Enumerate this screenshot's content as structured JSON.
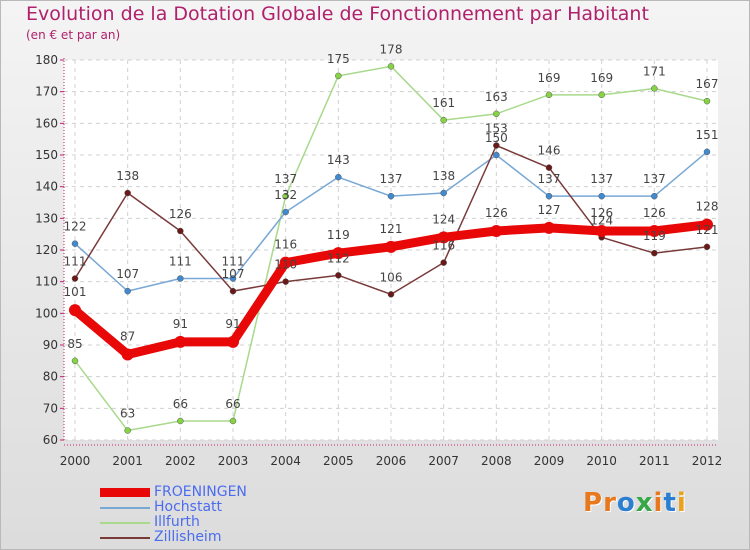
{
  "header": {
    "title": "Evolution de la Dotation Globale de Fonctionnement par Habitant",
    "subtitle": "(en € et par an)"
  },
  "logo": {
    "text": "Proxiti",
    "colors": [
      "#e8781e",
      "#e8781e",
      "#2c7fd0",
      "#35a847",
      "#e8781e",
      "#2c7fd0",
      "#e8a21e"
    ]
  },
  "chart_data": {
    "type": "line",
    "title": "Evolution de la Dotation Globale de Fonctionnement par Habitant",
    "subtitle": "(en € et par an)",
    "xlabel": "",
    "ylabel": "",
    "x": [
      "2000",
      "2001",
      "2002",
      "2003",
      "2004",
      "2005",
      "2006",
      "2007",
      "2008",
      "2009",
      "2010",
      "2011",
      "2012"
    ],
    "ylim": [
      60,
      180
    ],
    "yticks": [
      60,
      70,
      80,
      90,
      100,
      110,
      120,
      130,
      140,
      150,
      160,
      170,
      180
    ],
    "grid": true,
    "legend_position": "bottom-left",
    "series": [
      {
        "name": "Illfurth",
        "color": "#86d444",
        "stroke": "#a8d98c",
        "role": "thin",
        "values": [
          85,
          63,
          66,
          66,
          137,
          175,
          178,
          161,
          163,
          169,
          169,
          171,
          167
        ]
      },
      {
        "name": "Hochstatt",
        "color": "#3f8ad0",
        "stroke": "#78a8d4",
        "role": "thin",
        "values": [
          122,
          107,
          111,
          111,
          132,
          143,
          137,
          138,
          150,
          137,
          137,
          137,
          151
        ]
      },
      {
        "name": "Zillisheim",
        "color": "#6a1818",
        "stroke": "#7a3a3a",
        "role": "thin",
        "values": [
          111,
          138,
          126,
          107,
          110,
          112,
          106,
          116,
          153,
          146,
          124,
          119,
          121
        ]
      },
      {
        "name": "FROENINGEN",
        "color": "#e80808",
        "stroke": "#e80808",
        "role": "thick",
        "values": [
          101,
          87,
          91,
          91,
          116,
          119,
          121,
          124,
          126,
          127,
          126,
          126,
          128
        ]
      }
    ]
  }
}
